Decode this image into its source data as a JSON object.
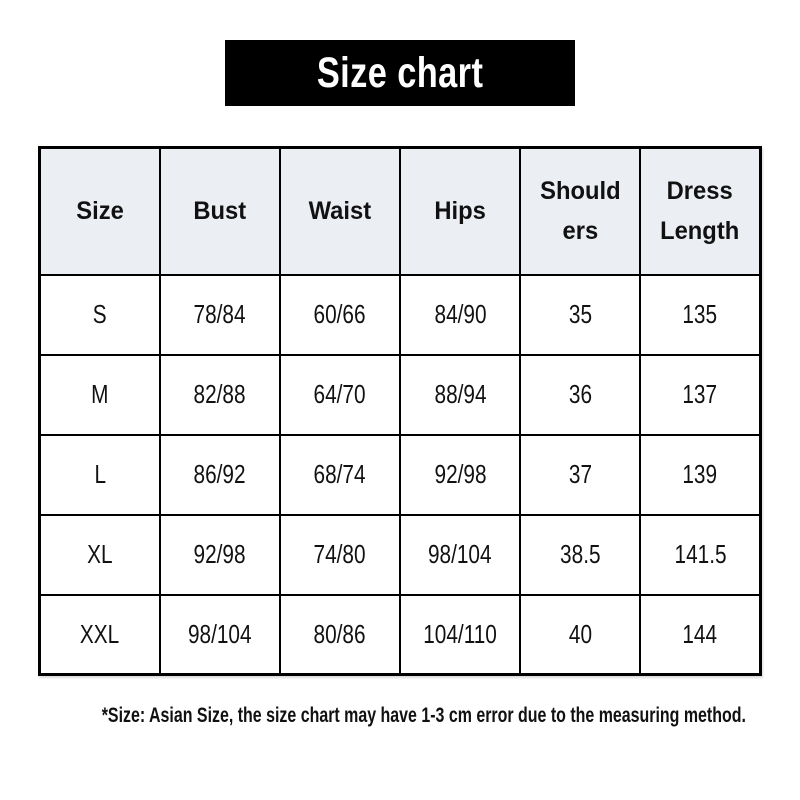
{
  "banner": {
    "title": "Size chart"
  },
  "colors": {
    "banner_bg": "#000000",
    "banner_text": "#ffffff",
    "table_header_bg": "#ebeef3",
    "table_border": "#000000",
    "body_text": "#111111",
    "page_bg": "#ffffff"
  },
  "table": {
    "columns": [
      "Size",
      "Bust",
      "Waist",
      "Hips",
      "Should\ners",
      "Dress\nLength"
    ],
    "rows": [
      [
        "S",
        "78/84",
        "60/66",
        "84/90",
        "35",
        "135"
      ],
      [
        "M",
        "82/88",
        "64/70",
        "88/94",
        "36",
        "137"
      ],
      [
        "L",
        "86/92",
        "68/74",
        "92/98",
        "37",
        "139"
      ],
      [
        "XL",
        "92/98",
        "74/80",
        "98/104",
        "38.5",
        "141.5"
      ],
      [
        "XXL",
        "98/104",
        "80/86",
        "104/110",
        "40",
        "144"
      ]
    ]
  },
  "footnote": "*Size: Asian Size, the size chart may have 1-3 cm error due to the measuring method.",
  "chart_data": {
    "type": "table",
    "title": "Size chart",
    "columns": [
      "Size",
      "Bust",
      "Waist",
      "Hips",
      "Shoulders",
      "Dress Length"
    ],
    "rows": [
      [
        "S",
        "78/84",
        "60/66",
        "84/90",
        "35",
        "135"
      ],
      [
        "M",
        "82/88",
        "64/70",
        "88/94",
        "36",
        "137"
      ],
      [
        "L",
        "86/92",
        "68/74",
        "92/98",
        "37",
        "139"
      ],
      [
        "XL",
        "92/98",
        "74/80",
        "98/104",
        "38.5",
        "141.5"
      ],
      [
        "XXL",
        "98/104",
        "80/86",
        "104/110",
        "40",
        "144"
      ]
    ],
    "note": "*Size: Asian Size, the size chart may have 1-3 cm error due to the measuring method."
  }
}
